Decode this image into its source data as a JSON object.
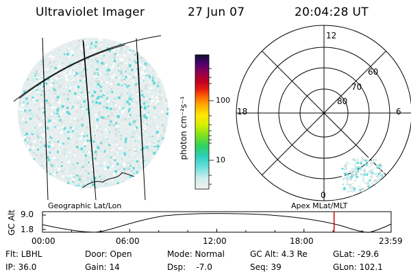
{
  "header": {
    "title": "Ultraviolet Imager",
    "date": "27 Jun 07",
    "time": "20:04:28 UT"
  },
  "colorbar": {
    "label": "photon cm⁻²s⁻¹",
    "ticks": [
      "100",
      "10"
    ]
  },
  "polar": {
    "mlt_labels": {
      "top": "12",
      "left": "18",
      "right": "6",
      "bottom": "0"
    },
    "lat_labels": [
      "60",
      "70",
      "80"
    ]
  },
  "map_labels": {
    "left": "Geographic Lat/Lon",
    "right": "Apex MLat/MLT"
  },
  "orbit_plot": {
    "ylabel": "GC Alt",
    "y_ticks": [
      "9.0",
      "1.8"
    ],
    "x_ticks": [
      "00:00",
      "06:00",
      "12:00",
      "18:00",
      "23:59"
    ],
    "current_marker_hours": 20.07
  },
  "info": {
    "filter": "Flt: LBHL",
    "ip": "IP: 36.0",
    "door": "Door: Open",
    "gain": "Gain: 14",
    "mode": "Mode: Normal",
    "dsp": "Dsp:    -7.0",
    "gc_alt": "GC Alt: 4.3 Re",
    "seq": "Seq: 39",
    "glat": "GLat: -29.6",
    "glon": "GLon: 102.1"
  },
  "colors": {
    "speckle_cyan": "#5fd8d8",
    "speckle_pale": "#cfeeee",
    "speckle_grey": "#d8dcdc",
    "marker_red": "#d00000"
  }
}
